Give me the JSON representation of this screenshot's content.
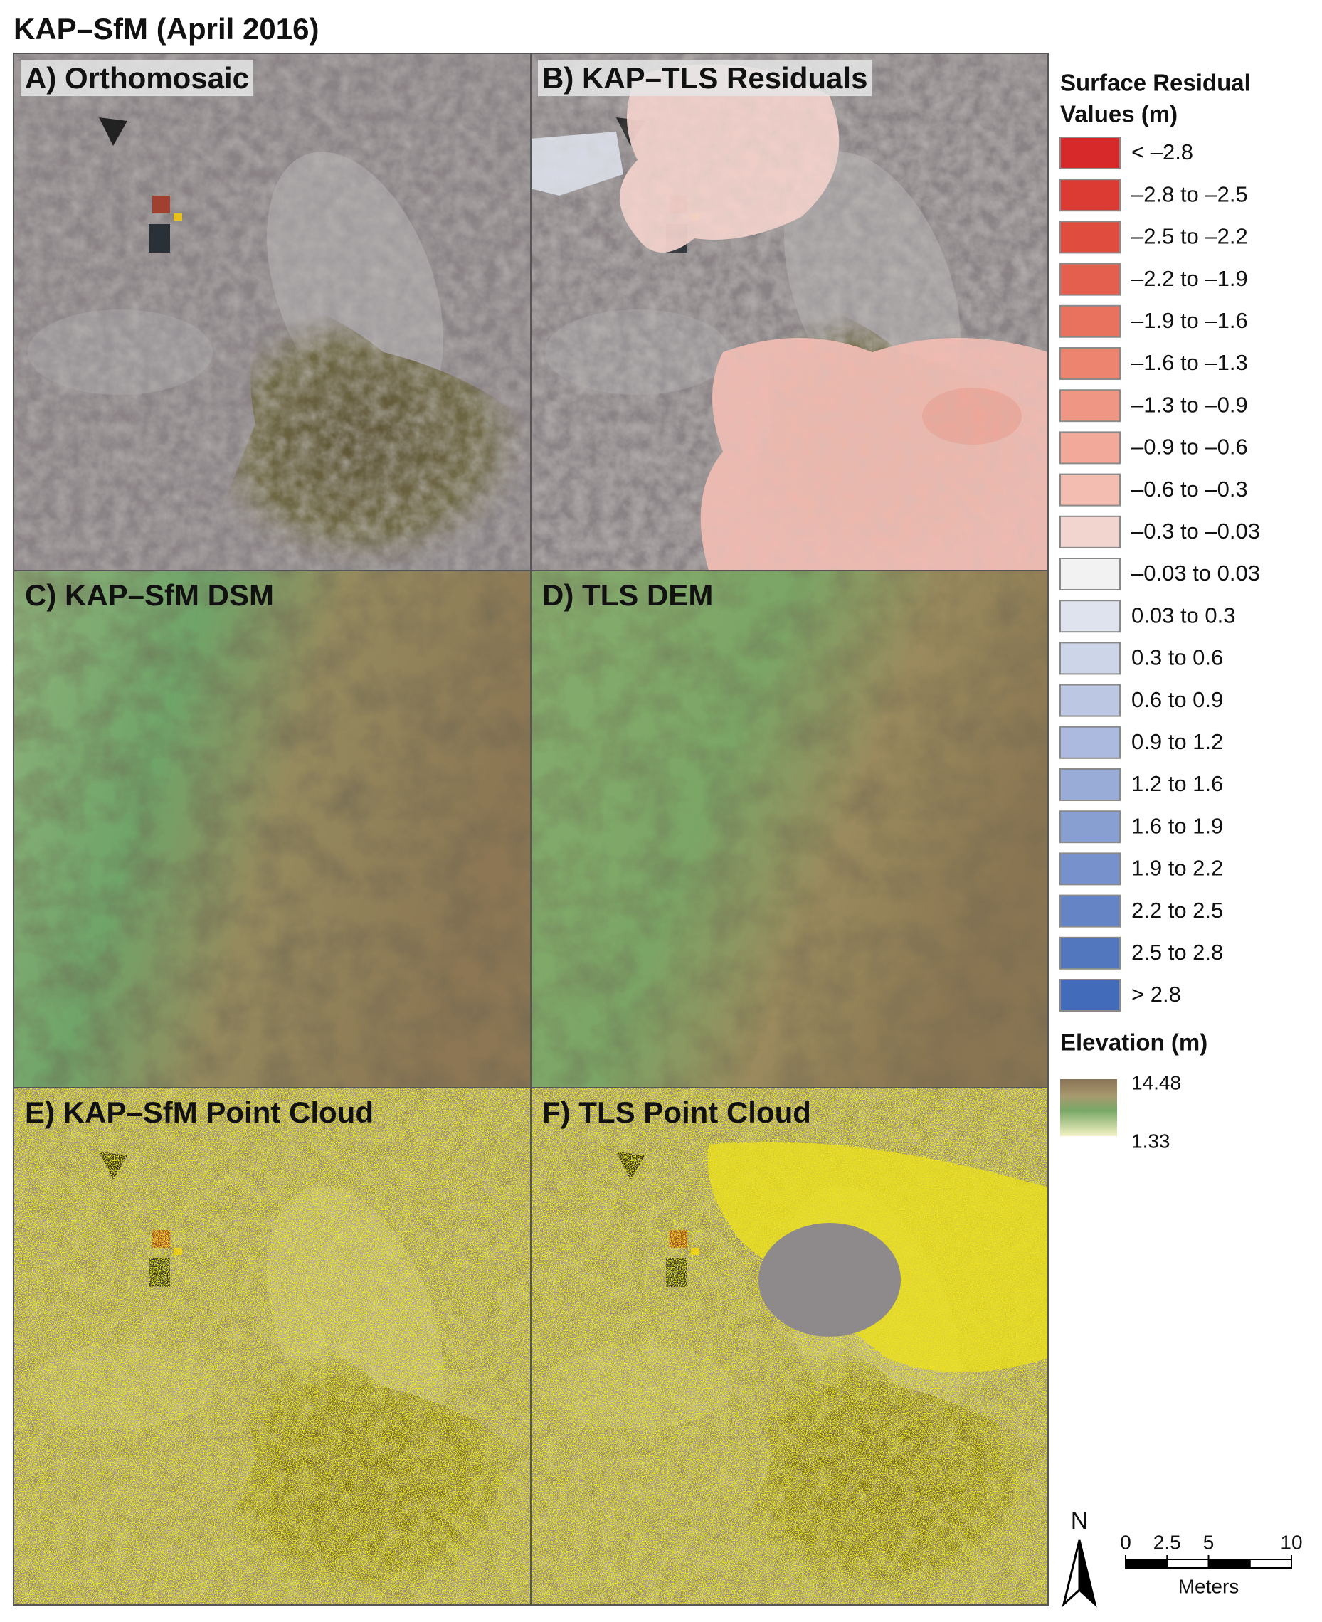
{
  "title": "KAP–SfM (April 2016)",
  "panels": [
    {
      "label": "A) Orthomosaic"
    },
    {
      "label": "B) KAP–TLS Residuals"
    },
    {
      "label": "C) KAP–SfM DSM"
    },
    {
      "label": "D) TLS DEM"
    },
    {
      "label": "E) KAP–SfM Point Cloud"
    },
    {
      "label": "F) TLS Point Cloud"
    }
  ],
  "residual_legend": {
    "title_lines": [
      "Surface Residual",
      "Values (m)"
    ],
    "items": [
      {
        "label": "< –2.8",
        "color": "#d7282a"
      },
      {
        "label": "–2.8 to –2.5",
        "color": "#db3b32"
      },
      {
        "label": "–2.5 to –2.2",
        "color": "#e04d3f"
      },
      {
        "label": "–2.2 to –1.9",
        "color": "#e45f4d"
      },
      {
        "label": "–1.9 to –1.6",
        "color": "#e8725e"
      },
      {
        "label": "–1.6 to –1.3",
        "color": "#ec8470"
      },
      {
        "label": "–1.3 to –0.9",
        "color": "#ef9684"
      },
      {
        "label": "–0.9 to –0.6",
        "color": "#f3a99a"
      },
      {
        "label": "–0.6 to –0.3",
        "color": "#f4bdb1"
      },
      {
        "label": "–0.3 to –0.03",
        "color": "#f2d5cf"
      },
      {
        "label": "–0.03 to 0.03",
        "color": "#f2f2f2"
      },
      {
        "label": "0.03 to 0.3",
        "color": "#dfe3ee"
      },
      {
        "label": "0.3 to 0.6",
        "color": "#cdd5e8"
      },
      {
        "label": "0.6 to 0.9",
        "color": "#bcc8e3"
      },
      {
        "label": "0.9 to 1.2",
        "color": "#abbade"
      },
      {
        "label": "1.2 to 1.6",
        "color": "#99acd8"
      },
      {
        "label": "1.6 to 1.9",
        "color": "#889fd2"
      },
      {
        "label": "1.9 to 2.2",
        "color": "#7691cc"
      },
      {
        "label": "2.2 to 2.5",
        "color": "#6484c6"
      },
      {
        "label": "2.5 to 2.8",
        "color": "#5377bf"
      },
      {
        "label": "> 2.8",
        "color": "#426bb9"
      }
    ]
  },
  "elevation_legend": {
    "title": "Elevation (m)",
    "max": 14.48,
    "min": 1.33
  },
  "north_arrow": "N",
  "scale_bar": {
    "ticks": [
      0,
      2.5,
      5,
      10
    ],
    "unit": "Meters"
  }
}
